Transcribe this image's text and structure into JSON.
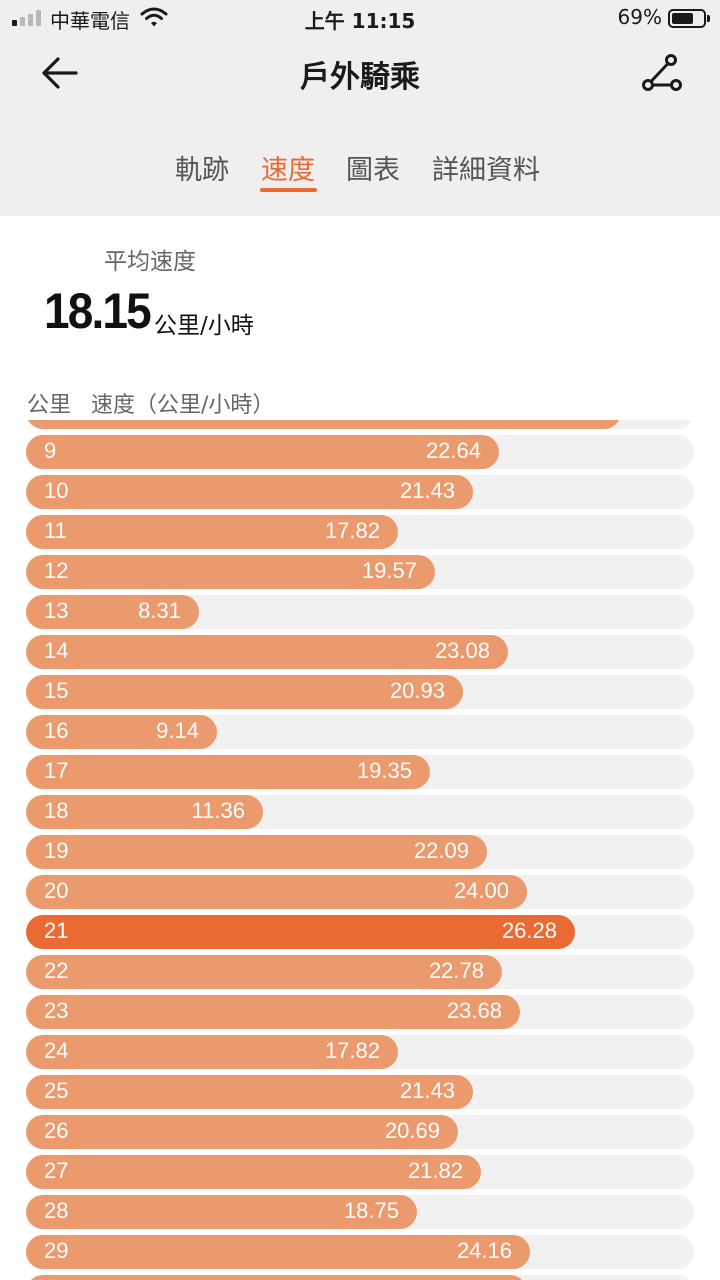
{
  "status_bar": {
    "carrier": "中華電信",
    "time": "上午 11:15",
    "battery_percent": "69%",
    "battery_level": 0.69,
    "signal_bars_on": 1,
    "signal_bars_total": 4
  },
  "header": {
    "title": "戶外騎乘",
    "back_icon": "back-arrow-icon",
    "route_icon": "route-icon"
  },
  "tabs": [
    {
      "label": "軌跡",
      "active": false
    },
    {
      "label": "速度",
      "active": true
    },
    {
      "label": "圖表",
      "active": false
    },
    {
      "label": "詳細資料",
      "active": false
    }
  ],
  "summary": {
    "avg_label": "平均速度",
    "avg_value": "18.15",
    "avg_unit": "公里/小時"
  },
  "columns": {
    "km": "公里",
    "speed": "速度（公里/小時）"
  },
  "colors": {
    "accent": "#ea6a34",
    "bar": "#eb9a6e",
    "track": "#f1f1f2"
  },
  "scale_max_speed": 32.0,
  "partial_top_speed": 28.5,
  "partial_bottom_speed": 24.0,
  "rows": [
    {
      "km": "9",
      "speed": "22.64",
      "value": 22.64
    },
    {
      "km": "10",
      "speed": "21.43",
      "value": 21.43
    },
    {
      "km": "11",
      "speed": "17.82",
      "value": 17.82
    },
    {
      "km": "12",
      "speed": "19.57",
      "value": 19.57
    },
    {
      "km": "13",
      "speed": "8.31",
      "value": 8.31
    },
    {
      "km": "14",
      "speed": "23.08",
      "value": 23.08
    },
    {
      "km": "15",
      "speed": "20.93",
      "value": 20.93
    },
    {
      "km": "16",
      "speed": "9.14",
      "value": 9.14
    },
    {
      "km": "17",
      "speed": "19.35",
      "value": 19.35
    },
    {
      "km": "18",
      "speed": "11.36",
      "value": 11.36
    },
    {
      "km": "19",
      "speed": "22.09",
      "value": 22.09
    },
    {
      "km": "20",
      "speed": "24.00",
      "value": 24.0
    },
    {
      "km": "21",
      "speed": "26.28",
      "value": 26.28,
      "max": true
    },
    {
      "km": "22",
      "speed": "22.78",
      "value": 22.78
    },
    {
      "km": "23",
      "speed": "23.68",
      "value": 23.68
    },
    {
      "km": "24",
      "speed": "17.82",
      "value": 17.82
    },
    {
      "km": "25",
      "speed": "21.43",
      "value": 21.43
    },
    {
      "km": "26",
      "speed": "20.69",
      "value": 20.69
    },
    {
      "km": "27",
      "speed": "21.82",
      "value": 21.82
    },
    {
      "km": "28",
      "speed": "18.75",
      "value": 18.75
    },
    {
      "km": "29",
      "speed": "24.16",
      "value": 24.16
    }
  ]
}
